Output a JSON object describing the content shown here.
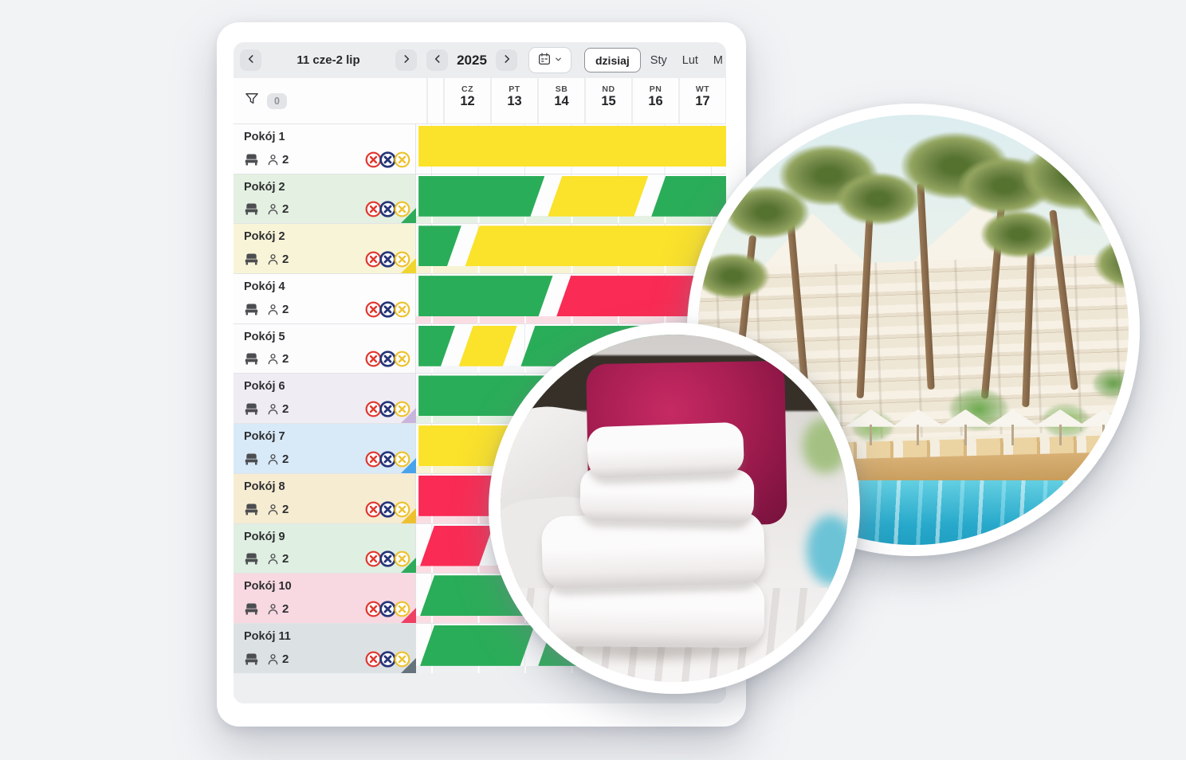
{
  "toolbar": {
    "date_range": "11 cze-2 lip",
    "year": "2025",
    "today_label": "dzisiaj",
    "months_visible": [
      "Sty",
      "Lut",
      "M"
    ]
  },
  "filter": {
    "count": "0"
  },
  "day_header": {
    "days": [
      {
        "dow": "CZ",
        "num": "12"
      },
      {
        "dow": "PT",
        "num": "13"
      },
      {
        "dow": "SB",
        "num": "14"
      },
      {
        "dow": "ND",
        "num": "15"
      },
      {
        "dow": "PN",
        "num": "16"
      },
      {
        "dow": "WT",
        "num": "17"
      }
    ]
  },
  "bar_colors": {
    "yellow": "#fbe22b",
    "green": "#2aad58",
    "red": "#fa2b54"
  },
  "status_icons": [
    {
      "name": "cancel-red-icon",
      "color": "#e0372e",
      "ring": 2.1,
      "cross": 2.3
    },
    {
      "name": "cancel-navy-icon",
      "color": "#263579",
      "ring": 2.6,
      "cross": 2.7
    },
    {
      "name": "cancel-yellow-icon",
      "color": "#eec22f",
      "ring": 2.1,
      "cross": 2.3
    }
  ],
  "rooms": [
    {
      "name": "Pokój 1",
      "capacity": "2",
      "bg": "#fdfdfe",
      "corner": null,
      "strip": null,
      "bars": [
        {
          "color": "yellow",
          "start": 0.8,
          "end": 100,
          "slant_left": false,
          "slant_right": false
        }
      ]
    },
    {
      "name": "Pokój 2",
      "capacity": "2",
      "bg": "#e4f0e1",
      "corner": "#2fab5c",
      "strip": "#e4f1e3",
      "bars": [
        {
          "color": "green",
          "start": 0.8,
          "end": 41.5,
          "slant_left": false,
          "slant_right": true
        },
        {
          "color": "yellow",
          "start": 42.5,
          "end": 74.9,
          "slant_left": true,
          "slant_right": true
        },
        {
          "color": "green",
          "start": 75.9,
          "end": 100,
          "slant_left": true,
          "slant_right": false
        }
      ]
    },
    {
      "name": "Pokój 2",
      "capacity": "2",
      "bg": "#f8f4d8",
      "corner": "#f0d52e",
      "strip": "#f7f3d4",
      "bars": [
        {
          "color": "green",
          "start": 0.8,
          "end": 14.6,
          "slant_left": false,
          "slant_right": true
        },
        {
          "color": "yellow",
          "start": 15.8,
          "end": 100,
          "slant_left": true,
          "slant_right": false
        }
      ]
    },
    {
      "name": "Pokój 4",
      "capacity": "2",
      "bg": "#fdfdfe",
      "corner": null,
      "strip": "#fadde3",
      "bars": [
        {
          "color": "green",
          "start": 0.8,
          "end": 44.1,
          "slant_left": false,
          "slant_right": true
        },
        {
          "color": "red",
          "start": 45.3,
          "end": 100,
          "slant_left": true,
          "slant_right": false
        }
      ]
    },
    {
      "name": "Pokój 5",
      "capacity": "2",
      "bg": "#fcfcfd",
      "corner": null,
      "strip": "#f5f6f7",
      "bars": [
        {
          "color": "green",
          "start": 0.8,
          "end": 12.6,
          "slant_left": false,
          "slant_right": true
        },
        {
          "color": "yellow",
          "start": 13.8,
          "end": 32.6,
          "slant_left": true,
          "slant_right": true
        },
        {
          "color": "green",
          "start": 33.8,
          "end": 100,
          "slant_left": true,
          "slant_right": false
        }
      ]
    },
    {
      "name": "Pokój 6",
      "capacity": "2",
      "bg": "#efecf4",
      "corner": "#c8b5dc",
      "strip": "#e4f1e3",
      "bars": [
        {
          "color": "green",
          "start": 0.8,
          "end": 100,
          "slant_left": false,
          "slant_right": false
        }
      ]
    },
    {
      "name": "Pokój 7",
      "capacity": "2",
      "bg": "#d8e9f7",
      "corner": "#49a3ea",
      "strip": "#f7f3d4",
      "bars": [
        {
          "color": "yellow",
          "start": 0.8,
          "end": 100,
          "slant_left": false,
          "slant_right": false
        }
      ]
    },
    {
      "name": "Pokój 8",
      "capacity": "2",
      "bg": "#f6ecd2",
      "corner": "#edc02f",
      "strip": "#fadde3",
      "bars": [
        {
          "color": "red",
          "start": 0.8,
          "end": 100,
          "slant_left": false,
          "slant_right": false
        }
      ]
    },
    {
      "name": "Pokój 9",
      "capacity": "2",
      "bg": "#dfefe2",
      "corner": "#2fab5c",
      "strip": "#fadde3",
      "bars": [
        {
          "color": "red",
          "start": 1.3,
          "end": 24.9,
          "slant_left": true,
          "slant_right": true
        },
        {
          "color": "red",
          "start": 26.1,
          "end": 100,
          "slant_left": true,
          "slant_right": false
        }
      ]
    },
    {
      "name": "Pokój 10",
      "capacity": "2",
      "bg": "#f8d9e1",
      "corner": "#ee4064",
      "strip": "#fadde3",
      "bars": [
        {
          "color": "green",
          "start": 1.3,
          "end": 100,
          "slant_left": true,
          "slant_right": false
        }
      ]
    },
    {
      "name": "Pokój 11",
      "capacity": "2",
      "bg": "#dce1e4",
      "corner": "#67747e",
      "strip": "#eef0f2",
      "bars": [
        {
          "color": "green",
          "start": 1.3,
          "end": 38.2,
          "slant_left": true,
          "slant_right": true
        },
        {
          "color": "green",
          "start": 39.4,
          "end": 100,
          "slant_left": true,
          "slant_right": false
        }
      ]
    }
  ]
}
